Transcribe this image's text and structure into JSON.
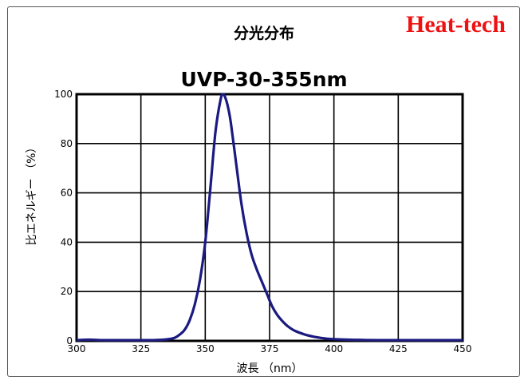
{
  "chart_data": {
    "type": "line",
    "title": "分光分布",
    "subtitle": "UVP-30-355nm",
    "brand": "Heat-tech",
    "xlabel": "波長 （nm）",
    "ylabel": "比エネルギー （%）",
    "xlim": [
      300,
      450
    ],
    "ylim": [
      0,
      100
    ],
    "x_ticks": [
      300,
      325,
      350,
      375,
      400,
      425,
      450
    ],
    "y_ticks": [
      0,
      20,
      40,
      60,
      80,
      100
    ],
    "grid": true,
    "line_color": "#1a1a80",
    "series": [
      {
        "x": [
          300,
          305,
          310,
          320,
          330,
          335,
          338,
          340,
          342,
          344,
          346,
          348,
          350,
          352,
          354,
          356,
          357,
          358,
          359,
          360,
          362,
          364,
          366,
          368,
          370,
          372,
          374,
          376,
          378,
          380,
          382,
          385,
          390,
          395,
          400,
          410,
          420,
          450
        ],
        "y": [
          0.3,
          0.5,
          0.3,
          0.3,
          0.3,
          0.6,
          1.2,
          2.5,
          4.5,
          8.5,
          15,
          25,
          40,
          62,
          85,
          98,
          100,
          98,
          94,
          88,
          72,
          56,
          44,
          35,
          29,
          24,
          19,
          14,
          10.5,
          8,
          6,
          4,
          2.2,
          1.2,
          0.7,
          0.4,
          0.3,
          0.3
        ]
      }
    ]
  }
}
